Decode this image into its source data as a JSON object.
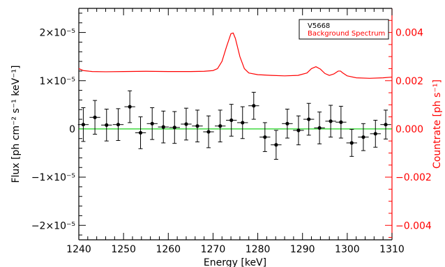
{
  "chart_data": {
    "type": "scatter",
    "title": "",
    "xlabel": "Energy [keV]",
    "ylabel_left": "Flux [ph cm⁻² s⁻¹ keV⁻¹]",
    "ylabel_right": "Countrate [ph s⁻¹]",
    "xlim": [
      1240,
      1310
    ],
    "ylim_left": [
      -2.3e-05,
      2.5e-05
    ],
    "ylim_right": [
      -0.0046,
      0.005
    ],
    "x_ticks": [
      1240,
      1250,
      1260,
      1270,
      1280,
      1290,
      1300,
      1310
    ],
    "x_tick_labels": [
      "1240",
      "1250",
      "1260",
      "1270",
      "1280",
      "1290",
      "1300",
      "1310"
    ],
    "y_left_ticks": [
      -2e-05,
      -1e-05,
      0,
      1e-05,
      2e-05
    ],
    "y_left_tick_labels": [
      "−2×10⁻⁵",
      "−1×10⁻⁵",
      "0",
      "1×10⁻⁵",
      "2×10⁻⁵"
    ],
    "y_right_ticks": [
      -0.004,
      -0.002,
      0,
      0.002,
      0.004
    ],
    "y_right_tick_labels": [
      "−0.004",
      "−0.002",
      "0.000",
      "0.002",
      "0.004"
    ],
    "legend": {
      "placement": "top-right",
      "entries": [
        "V5668",
        "Background Spectrum"
      ]
    },
    "colors": {
      "data": "#000000",
      "background": "#ff0000",
      "model": "#00cc00",
      "right_axis": "#ff0000"
    },
    "series": [
      {
        "name": "V5668",
        "axis": "left",
        "style": "points-with-errorbars",
        "points": [
          {
            "x": 1241.0,
            "y": 9e-07,
            "xerr": 1.2,
            "yerr": 3.5e-06
          },
          {
            "x": 1243.6,
            "y": 2.4e-06,
            "xerr": 1.2,
            "yerr": 3.5e-06
          },
          {
            "x": 1246.2,
            "y": 8e-07,
            "xerr": 1.2,
            "yerr": 3.3e-06
          },
          {
            "x": 1248.8,
            "y": 9e-07,
            "xerr": 1.2,
            "yerr": 3.3e-06
          },
          {
            "x": 1251.4,
            "y": 4.6e-06,
            "xerr": 1.2,
            "yerr": 3.3e-06
          },
          {
            "x": 1253.8,
            "y": -8e-07,
            "xerr": 1.2,
            "yerr": 3.3e-06
          },
          {
            "x": 1256.4,
            "y": 1.1e-06,
            "xerr": 1.2,
            "yerr": 3.3e-06
          },
          {
            "x": 1258.9,
            "y": 4e-07,
            "xerr": 1.2,
            "yerr": 3.3e-06
          },
          {
            "x": 1261.4,
            "y": 3e-07,
            "xerr": 1.2,
            "yerr": 3.3e-06
          },
          {
            "x": 1264.0,
            "y": 1e-06,
            "xerr": 1.2,
            "yerr": 3.3e-06
          },
          {
            "x": 1266.5,
            "y": 6e-07,
            "xerr": 1.2,
            "yerr": 3.3e-06
          },
          {
            "x": 1269.0,
            "y": -6e-07,
            "xerr": 1.2,
            "yerr": 3.3e-06
          },
          {
            "x": 1271.6,
            "y": 6e-07,
            "xerr": 1.2,
            "yerr": 3.3e-06
          },
          {
            "x": 1274.1,
            "y": 1.8e-06,
            "xerr": 1.2,
            "yerr": 3.3e-06
          },
          {
            "x": 1276.6,
            "y": 1.3e-06,
            "xerr": 1.2,
            "yerr": 3.3e-06
          },
          {
            "x": 1279.1,
            "y": 4.8e-06,
            "xerr": 1.2,
            "yerr": 2.8e-06
          },
          {
            "x": 1281.6,
            "y": -1.7e-06,
            "xerr": 1.2,
            "yerr": 3e-06
          },
          {
            "x": 1284.1,
            "y": -3.3e-06,
            "xerr": 1.2,
            "yerr": 3e-06
          },
          {
            "x": 1286.6,
            "y": 1.1e-06,
            "xerr": 1.2,
            "yerr": 3e-06
          },
          {
            "x": 1289.1,
            "y": -3e-07,
            "xerr": 1.2,
            "yerr": 3e-06
          },
          {
            "x": 1291.4,
            "y": 2e-06,
            "xerr": 1.2,
            "yerr": 3.3e-06
          },
          {
            "x": 1293.8,
            "y": 2e-07,
            "xerr": 1.2,
            "yerr": 3.3e-06
          },
          {
            "x": 1296.3,
            "y": 1.6e-06,
            "xerr": 1.2,
            "yerr": 3.3e-06
          },
          {
            "x": 1298.6,
            "y": 1.4e-06,
            "xerr": 1.2,
            "yerr": 3.3e-06
          },
          {
            "x": 1301.0,
            "y": -2.9e-06,
            "xerr": 1.2,
            "yerr": 2.8e-06
          },
          {
            "x": 1303.6,
            "y": -1.7e-06,
            "xerr": 1.2,
            "yerr": 2.8e-06
          },
          {
            "x": 1306.3,
            "y": -1e-06,
            "xerr": 1.2,
            "yerr": 2.8e-06
          },
          {
            "x": 1308.6,
            "y": 9e-07,
            "xerr": 1.2,
            "yerr": 3e-06
          }
        ]
      },
      {
        "name": "Background Spectrum",
        "axis": "right",
        "style": "line",
        "x": [
          1240,
          1241,
          1243,
          1246,
          1250,
          1255,
          1260,
          1265,
          1268,
          1270,
          1271,
          1272,
          1273,
          1274,
          1274.5,
          1275,
          1276,
          1277,
          1278,
          1280,
          1283,
          1286,
          1289,
          1291,
          1292,
          1293,
          1294,
          1295,
          1296,
          1297,
          1298,
          1298.5,
          1299,
          1300,
          1302,
          1305,
          1308,
          1310
        ],
        "y": [
          0.0025,
          0.00242,
          0.00238,
          0.00237,
          0.00238,
          0.00239,
          0.00238,
          0.00238,
          0.00239,
          0.00242,
          0.0025,
          0.0028,
          0.0034,
          0.00395,
          0.00398,
          0.00375,
          0.003,
          0.0025,
          0.00232,
          0.00225,
          0.00222,
          0.0022,
          0.00222,
          0.00232,
          0.0025,
          0.00258,
          0.00248,
          0.0023,
          0.00222,
          0.00228,
          0.0024,
          0.0024,
          0.00232,
          0.0022,
          0.00212,
          0.0021,
          0.00212,
          0.00215
        ]
      },
      {
        "name": "",
        "axis": "left",
        "style": "line",
        "x": [
          1240,
          1310
        ],
        "y": [
          0,
          0
        ]
      }
    ]
  }
}
